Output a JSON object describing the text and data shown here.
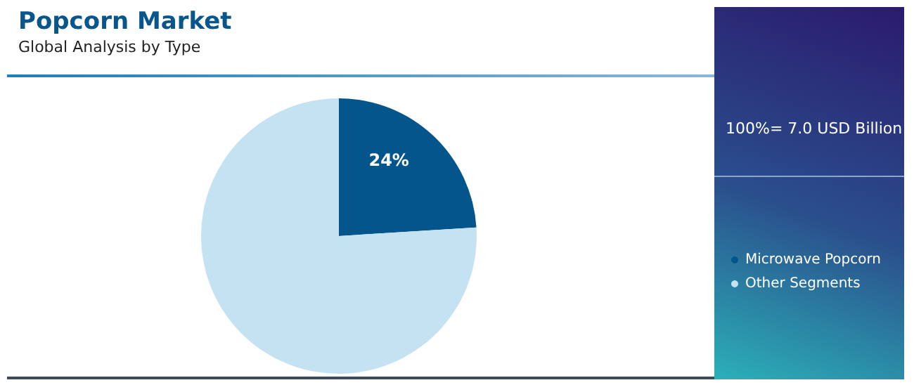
{
  "chart_data": {
    "type": "pie",
    "title": "Popcorn Market",
    "subtitle": "Global Analysis by Type",
    "categories": [
      "Microwave Popcorn",
      "Other Segments"
    ],
    "values": [
      24,
      76
    ],
    "colors": [
      "#03558c",
      "#c5e2f3"
    ],
    "value_labels": [
      "24%",
      null
    ],
    "annotations": [
      "100%= 7.0 USD Billion"
    ],
    "legend": "right"
  }
}
